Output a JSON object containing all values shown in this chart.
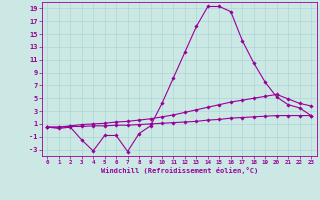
{
  "xlabel": "Windchill (Refroidissement éolien,°C)",
  "background_color": "#cce8e4",
  "line_color": "#990099",
  "grid_color": "#aad8d4",
  "xlim": [
    -0.5,
    23.5
  ],
  "ylim": [
    -4.0,
    20.0
  ],
  "yticks": [
    -3,
    -1,
    1,
    3,
    5,
    7,
    9,
    11,
    13,
    15,
    17,
    19
  ],
  "xticks": [
    0,
    1,
    2,
    3,
    4,
    5,
    6,
    7,
    8,
    9,
    10,
    11,
    12,
    13,
    14,
    15,
    16,
    17,
    18,
    19,
    20,
    21,
    22,
    23
  ],
  "line1_x": [
    0,
    1,
    2,
    3,
    4,
    5,
    6,
    7,
    8,
    9,
    10,
    11,
    12,
    13,
    14,
    15,
    16,
    17,
    18,
    19,
    20,
    21,
    22,
    23
  ],
  "line1_y": [
    0.5,
    0.3,
    0.5,
    -1.5,
    -3.2,
    -0.8,
    -0.8,
    -3.3,
    -0.5,
    0.7,
    4.2,
    8.2,
    12.2,
    16.2,
    19.3,
    19.3,
    18.5,
    14.0,
    10.5,
    7.5,
    5.2,
    4.0,
    3.5,
    2.3
  ],
  "line2_x": [
    0,
    1,
    2,
    3,
    4,
    5,
    6,
    7,
    8,
    9,
    10,
    11,
    12,
    13,
    14,
    15,
    16,
    17,
    18,
    19,
    20,
    21,
    22,
    23
  ],
  "line2_y": [
    0.5,
    0.5,
    0.7,
    0.9,
    1.0,
    1.1,
    1.3,
    1.4,
    1.6,
    1.8,
    2.1,
    2.4,
    2.8,
    3.2,
    3.6,
    4.0,
    4.4,
    4.7,
    5.0,
    5.3,
    5.6,
    4.9,
    4.2,
    3.8
  ],
  "line3_x": [
    0,
    1,
    2,
    3,
    4,
    5,
    6,
    7,
    8,
    9,
    10,
    11,
    12,
    13,
    14,
    15,
    16,
    17,
    18,
    19,
    20,
    21,
    22,
    23
  ],
  "line3_y": [
    0.5,
    0.5,
    0.6,
    0.6,
    0.7,
    0.7,
    0.8,
    0.8,
    0.9,
    1.0,
    1.1,
    1.2,
    1.3,
    1.4,
    1.6,
    1.7,
    1.9,
    2.0,
    2.1,
    2.2,
    2.3,
    2.3,
    2.3,
    2.3
  ]
}
